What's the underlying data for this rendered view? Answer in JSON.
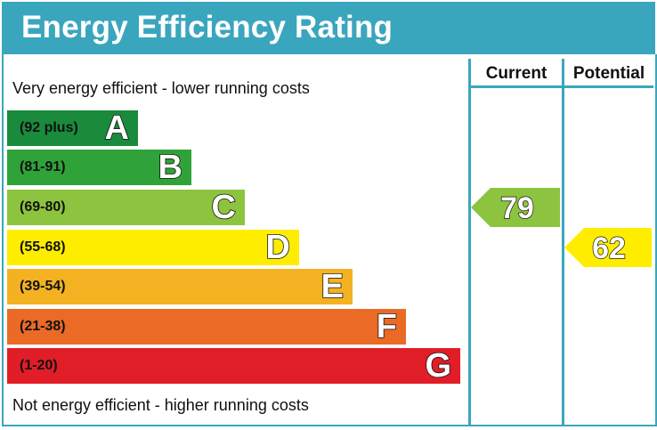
{
  "chart_data": {
    "type": "bar",
    "title": "Energy Efficiency Rating",
    "top_caption": "Very energy efficient - lower running costs",
    "bottom_caption": "Not energy efficient - higher running costs",
    "columns": {
      "current": "Current",
      "potential": "Potential"
    },
    "bands": [
      {
        "letter": "A",
        "range": "(92 plus)",
        "color": "#1a8a3c"
      },
      {
        "letter": "B",
        "range": "(81-91)",
        "color": "#2fa33a"
      },
      {
        "letter": "C",
        "range": "(69-80)",
        "color": "#8dc43f"
      },
      {
        "letter": "D",
        "range": "(55-68)",
        "color": "#ffed00"
      },
      {
        "letter": "E",
        "range": "(39-54)",
        "color": "#f4b222"
      },
      {
        "letter": "F",
        "range": "(21-38)",
        "color": "#ea6a26"
      },
      {
        "letter": "G",
        "range": "(1-20)",
        "color": "#e11d27"
      }
    ],
    "current": {
      "value": "79",
      "band": "C",
      "color": "#8dc43f"
    },
    "potential": {
      "value": "62",
      "band": "D",
      "color": "#ffed00"
    }
  }
}
